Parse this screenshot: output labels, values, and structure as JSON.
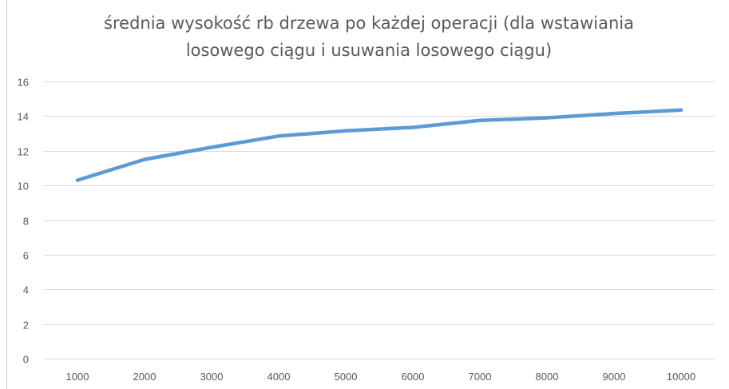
{
  "chart_data": {
    "type": "line",
    "title": "średnia wysokość rb drzewa po każdej operacji (dla wstawiania losowego ciągu i usuwania losowego ciągu)",
    "title_lines": [
      "średnia wysokość rb drzewa po każdej operacji (dla wstawiania",
      "losowego ciągu i usuwania losowego ciągu)"
    ],
    "xlabel": "",
    "ylabel": "",
    "categories": [
      "1000",
      "2000",
      "3000",
      "4000",
      "5000",
      "6000",
      "7000",
      "8000",
      "9000",
      "10000"
    ],
    "series": [
      {
        "values": [
          10.3,
          11.5,
          12.2,
          12.85,
          13.15,
          13.35,
          13.75,
          13.9,
          14.15,
          14.35
        ],
        "color": "#5b9bd5"
      }
    ],
    "ylim": [
      0,
      16
    ],
    "yticks": [
      "0",
      "2",
      "4",
      "6",
      "8",
      "10",
      "12",
      "14",
      "16"
    ],
    "grid": true,
    "legend": "none"
  }
}
